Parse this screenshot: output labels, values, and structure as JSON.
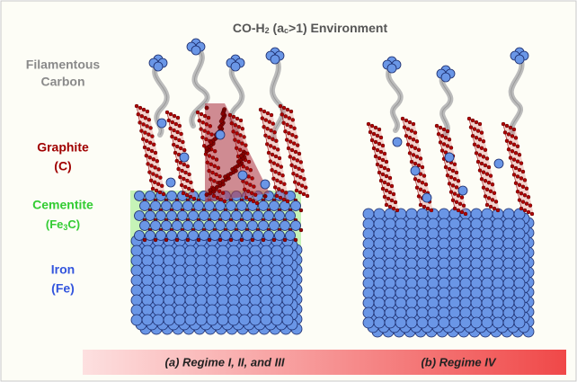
{
  "title": [
    "CO-H",
    "2",
    " (a",
    "c",
    ">1) Environment"
  ],
  "labels": {
    "filamentous": [
      "Filamentous",
      "Carbon"
    ],
    "graphite": [
      "Graphite",
      "(C)"
    ],
    "cementite": [
      "Cementite",
      [
        "(Fe",
        "3",
        "C)"
      ]
    ],
    "iron": [
      "Iron",
      "(Fe)"
    ]
  },
  "regimes": [
    "(a) Regime I, II, and III",
    "(b) Regime IV"
  ]
}
